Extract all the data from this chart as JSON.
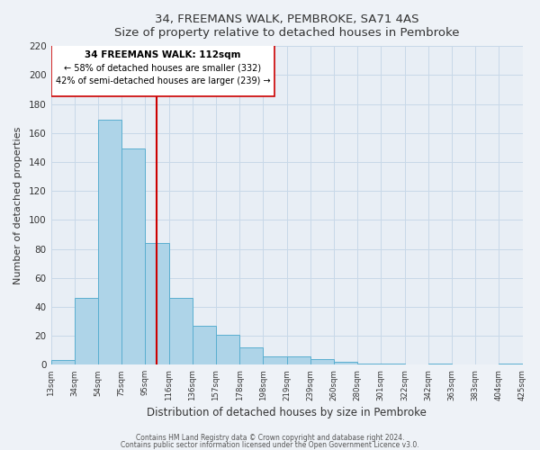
{
  "title": "34, FREEMANS WALK, PEMBROKE, SA71 4AS",
  "subtitle": "Size of property relative to detached houses in Pembroke",
  "xlabel": "Distribution of detached houses by size in Pembroke",
  "ylabel": "Number of detached properties",
  "bin_labels": [
    "13sqm",
    "34sqm",
    "54sqm",
    "75sqm",
    "95sqm",
    "116sqm",
    "136sqm",
    "157sqm",
    "178sqm",
    "198sqm",
    "219sqm",
    "239sqm",
    "260sqm",
    "280sqm",
    "301sqm",
    "322sqm",
    "342sqm",
    "363sqm",
    "383sqm",
    "404sqm",
    "425sqm"
  ],
  "bar_heights": [
    3,
    46,
    169,
    149,
    84,
    46,
    27,
    21,
    12,
    6,
    6,
    4,
    2,
    1,
    1,
    0,
    1,
    0,
    0,
    1
  ],
  "bar_color": "#aed4e8",
  "bar_edge_color": "#5aaed0",
  "vline_x": 4.5,
  "vline_color": "#cc0000",
  "ylim": [
    0,
    220
  ],
  "yticks": [
    0,
    20,
    40,
    60,
    80,
    100,
    120,
    140,
    160,
    180,
    200,
    220
  ],
  "annotation_title": "34 FREEMANS WALK: 112sqm",
  "annotation_line1": "← 58% of detached houses are smaller (332)",
  "annotation_line2": "42% of semi-detached houses are larger (239) →",
  "footer1": "Contains HM Land Registry data © Crown copyright and database right 2024.",
  "footer2": "Contains public sector information licensed under the Open Government Licence v3.0.",
  "background_color": "#eef2f7",
  "plot_bg_color": "#e8eef5"
}
